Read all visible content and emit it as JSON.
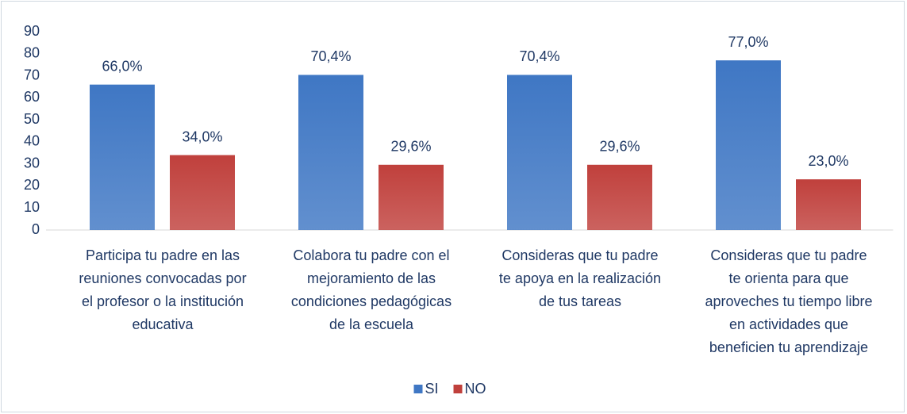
{
  "chart_data": {
    "type": "bar",
    "categories": [
      [
        "Participa tu padre en las",
        "reuniones convocadas por",
        "el profesor o la institución",
        "educativa"
      ],
      [
        "Colabora tu padre con el",
        "mejoramiento de las",
        "condiciones pedagógicas",
        "de la escuela"
      ],
      [
        "Consideras que tu padre",
        "te apoya  en la realización",
        "de tus tareas"
      ],
      [
        "Consideras que tu padre",
        "te orienta para que",
        "aproveches tu tiempo libre",
        "en actividades que",
        "beneficien tu aprendizaje"
      ]
    ],
    "series": [
      {
        "name": "SI",
        "color": "#3f77c4",
        "values": [
          66.0,
          70.4,
          70.4,
          77.0
        ],
        "value_labels": [
          "66,0%",
          "70,4%",
          "70,4%",
          "77,0%"
        ]
      },
      {
        "name": "NO",
        "color": "#c0403c",
        "values": [
          34.0,
          29.6,
          29.6,
          23.0
        ],
        "value_labels": [
          "34,0%",
          "29,6%",
          "29,6%",
          "23,0%"
        ]
      }
    ],
    "ylim": [
      0,
      90
    ],
    "yticks": [
      0,
      10,
      20,
      30,
      40,
      50,
      60,
      70,
      80,
      90
    ],
    "grid": false,
    "legend": "bottom"
  }
}
